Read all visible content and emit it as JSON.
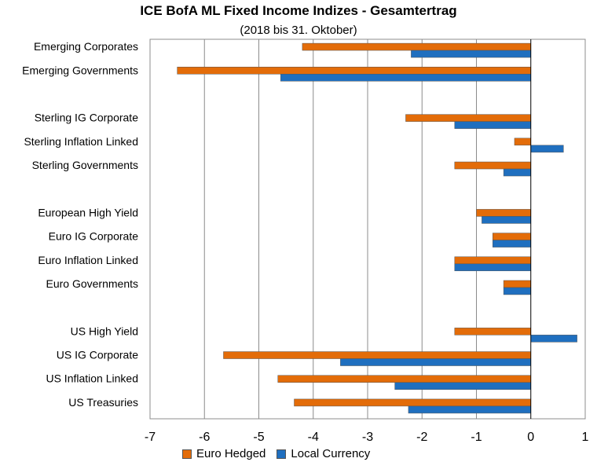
{
  "chart_data": {
    "type": "bar",
    "orientation": "horizontal",
    "title": "ICE BofA ML Fixed Income Indizes - Gesamtertrag",
    "subtitle": "(2018 bis  31. Oktober)",
    "xlim": [
      -7,
      1
    ],
    "xticks": [
      -7,
      -6,
      -5,
      -4,
      -3,
      -2,
      -1,
      0,
      1
    ],
    "grid": true,
    "legend_position": "bottom-left",
    "categories": [
      "Emerging Corporates",
      "Emerging Governments",
      "",
      "Sterling IG Corporate",
      "Sterling Inflation Linked",
      "Sterling Governments",
      "",
      "European High Yield",
      "Euro IG Corporate",
      "Euro Inflation Linked",
      "Euro Governments",
      "",
      "US High Yield",
      "US IG Corporate",
      "US Inflation Linked",
      "US Treasuries"
    ],
    "series": [
      {
        "name": "Euro Hedged",
        "color": "#E36C09",
        "values": [
          -4.2,
          -6.5,
          null,
          -2.3,
          -0.3,
          -1.4,
          null,
          -1.0,
          -0.7,
          -1.4,
          -0.5,
          null,
          -1.4,
          -5.65,
          -4.65,
          -4.35
        ]
      },
      {
        "name": "Local Currency",
        "color": "#1F6FBF",
        "values": [
          -2.2,
          -4.6,
          null,
          -1.4,
          0.6,
          -0.5,
          null,
          -0.9,
          -0.7,
          -1.4,
          -0.5,
          null,
          0.85,
          -3.5,
          -2.5,
          -2.25
        ]
      }
    ]
  }
}
